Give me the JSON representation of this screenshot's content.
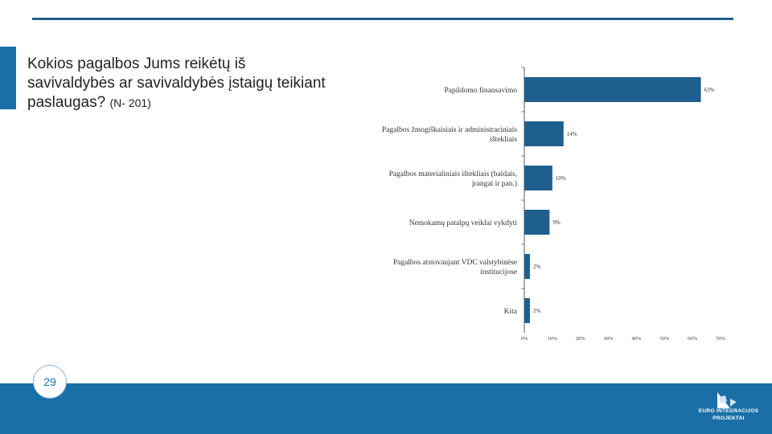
{
  "slide": {
    "title": "Kokios pagalbos Jums reikėtų iš savivaldybės ar savivaldybės įstaigų teikiant paslaugas?",
    "title_note": "(N- 201)",
    "page_number": "29"
  },
  "logo": {
    "line1": "EURO",
    "line2": "INTEGRACIJOS",
    "line3": "PROJEKTAI"
  },
  "colors": {
    "accent": "#1a6fa8",
    "bar": "#1f5f8f",
    "footer": "#1a6fa8"
  },
  "chart_data": {
    "type": "bar",
    "orientation": "horizontal",
    "categories": [
      "Papildomo finansavimo",
      "Pagalbos žmogiškaisiais ir administraciniais ištekliais",
      "Pagalbos materialiniais ištekliais (baldais, įrangai ir pan.)",
      "Nemokamų patalpų veiklai vykdyti",
      "Pagalbos atstovaujant VDC valstybinėse institucijose",
      "Kita"
    ],
    "values": [
      63,
      14,
      10,
      9,
      2,
      2
    ],
    "value_labels": [
      "63%",
      "14%",
      "10%",
      "9%",
      "2%",
      "2%"
    ],
    "xlim": [
      0,
      70
    ],
    "x_ticks": [
      "0%",
      "10%",
      "20%",
      "30%",
      "40%",
      "50%",
      "60%",
      "70%"
    ],
    "xlabel": "",
    "ylabel": "",
    "grid": false
  }
}
